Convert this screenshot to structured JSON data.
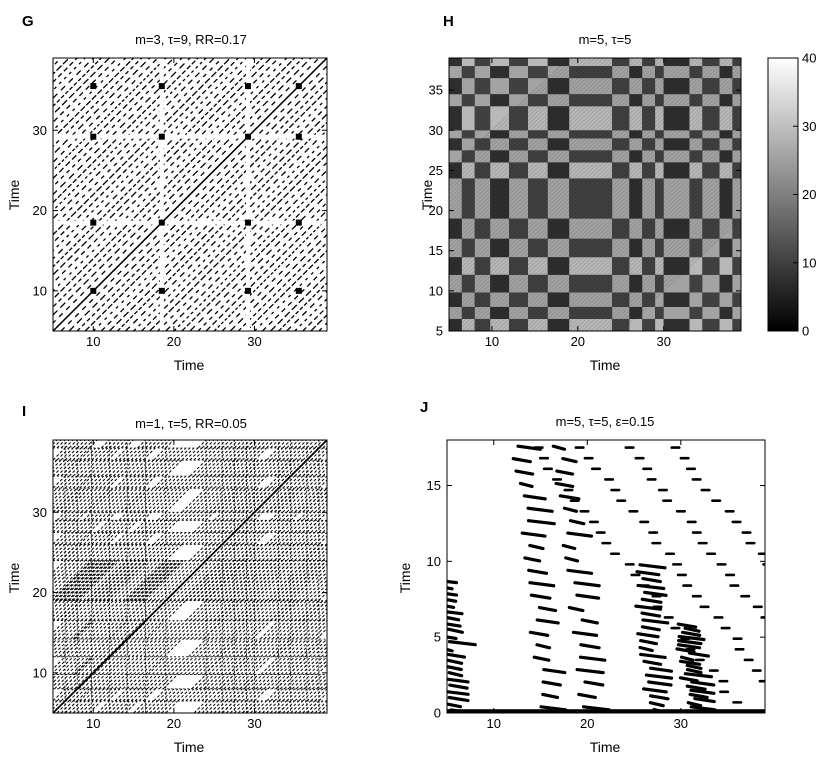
{
  "chart_data": [
    {
      "id": "G",
      "type": "heatmap",
      "panel_label": "G",
      "title": "m=3, τ=9, RR=0.17",
      "xlabel": "Time",
      "ylabel": "Time",
      "xlim": [
        5,
        39
      ],
      "ylim": [
        5,
        39
      ],
      "xticks": [
        10,
        20,
        30
      ],
      "yticks": [
        10,
        20,
        30
      ],
      "style": "binary",
      "bands": [
        18.5,
        29.2
      ],
      "spots": [
        10,
        18.5,
        29.2,
        35.5
      ],
      "stripe_spacing": 1.0
    },
    {
      "id": "H",
      "type": "heatmap",
      "panel_label": "H",
      "title": "m=5, τ=5",
      "xlabel": "Time",
      "ylabel": "Time",
      "xlim": [
        5,
        39
      ],
      "ylim": [
        5,
        39
      ],
      "xticks": [
        10,
        20,
        30
      ],
      "yticks": [
        5,
        10,
        15,
        20,
        25,
        30,
        35
      ],
      "style": "distance",
      "segments": [
        5,
        6.5,
        8,
        9.8,
        12,
        14.2,
        16.5,
        19,
        24,
        26,
        27.5,
        29,
        30,
        33,
        34.5,
        36.5,
        38,
        39
      ],
      "colorbar": {
        "min": 0,
        "max": 40,
        "ticks": [
          0,
          10,
          20,
          30,
          40
        ],
        "colormap": "gray"
      }
    },
    {
      "id": "I",
      "type": "heatmap",
      "panel_label": "I",
      "title": "m=1, τ=5, RR=0.05",
      "xlabel": "Time",
      "ylabel": "Time",
      "xlim": [
        5,
        39
      ],
      "ylim": [
        5,
        39
      ],
      "xticks": [
        10,
        20,
        30
      ],
      "yticks": [
        10,
        20,
        30
      ],
      "style": "sparse",
      "segments": [
        5,
        6.5,
        8,
        9.8,
        12,
        14.2,
        16.5,
        19,
        24,
        26,
        27.5,
        29,
        30,
        33,
        34.5,
        36.5,
        38,
        39
      ]
    },
    {
      "id": "J",
      "type": "scatter",
      "panel_label": "J",
      "title": "m=5, τ=5, ε=0.15",
      "xlabel": "Time",
      "ylabel": "Time",
      "xlim": [
        5,
        39
      ],
      "ylim": [
        0,
        18
      ],
      "xticks": [
        10,
        20,
        30
      ],
      "yticks": [
        0,
        5,
        10,
        15
      ],
      "style": "windowed",
      "clusters": [
        {
          "x": 5.5,
          "y_max": 9.0
        },
        {
          "x": 15.5,
          "y_max": 18.0
        },
        {
          "x": 20.0,
          "y_max": 18.0
        },
        {
          "x": 27.0,
          "y_max": 10.0
        },
        {
          "x": 31.0,
          "y_max": 6.0
        }
      ]
    }
  ]
}
